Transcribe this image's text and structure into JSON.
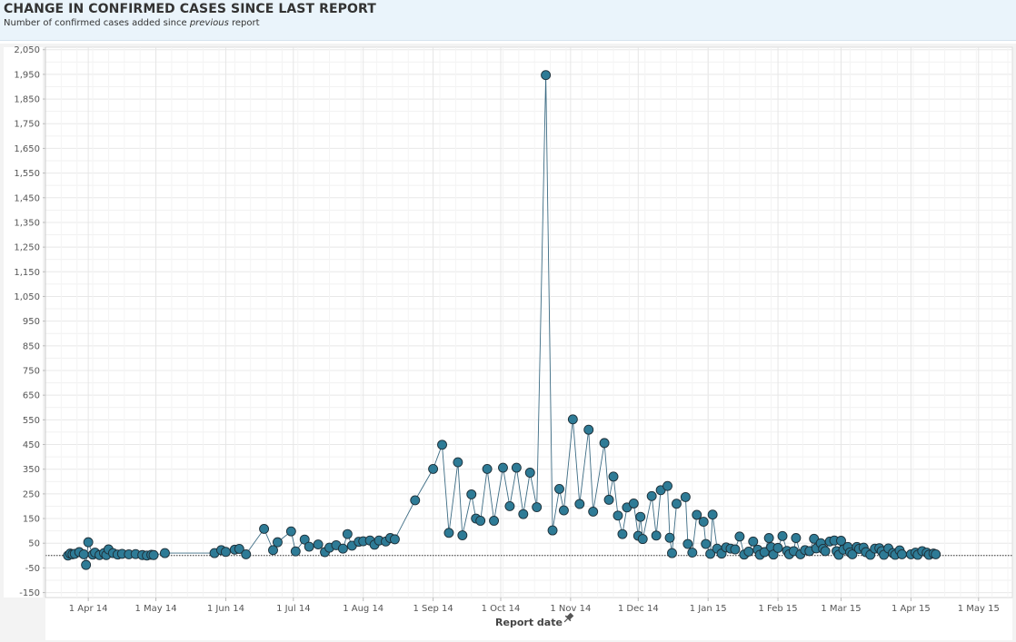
{
  "header": {
    "title": "CHANGE IN CONFIRMED CASES SINCE LAST REPORT",
    "subtitle_pre": "Number of confirmed cases added since ",
    "subtitle_em": "previous",
    "subtitle_post": " report"
  },
  "chart_data": {
    "type": "line",
    "title": "CHANGE IN CONFIRMED CASES SINCE LAST REPORT",
    "subtitle": "Number of confirmed cases added since previous report",
    "xlabel": "Report date",
    "ylabel": "",
    "ylim": [
      -170,
      2060
    ],
    "xlim": [
      "2014-03-13",
      "2015-05-16"
    ],
    "grid": true,
    "marker": "circle",
    "colors": {
      "series": "#2e7b96",
      "marker_edge": "#1d2f38",
      "line": "#3d6c84",
      "zero_line": "#333333"
    },
    "yticks": [
      -150,
      -50,
      50,
      150,
      250,
      350,
      450,
      550,
      650,
      750,
      850,
      950,
      1050,
      1150,
      1250,
      1350,
      1450,
      1550,
      1650,
      1750,
      1850,
      1950,
      2050
    ],
    "ytick_labels": [
      "-150",
      "-50",
      "50",
      "150",
      "250",
      "350",
      "450",
      "550",
      "650",
      "750",
      "850",
      "950",
      "1,050",
      "1,150",
      "1,250",
      "1,350",
      "1,450",
      "1,550",
      "1,650",
      "1,750",
      "1,850",
      "1,950",
      "2,050"
    ],
    "xticks": [
      {
        "date": "2014-04-01",
        "label": "1 Apr 14"
      },
      {
        "date": "2014-05-01",
        "label": "1 May 14"
      },
      {
        "date": "2014-06-01",
        "label": "1 Jun 14"
      },
      {
        "date": "2014-07-01",
        "label": "1 Jul 14"
      },
      {
        "date": "2014-08-01",
        "label": "1 Aug 14"
      },
      {
        "date": "2014-09-01",
        "label": "1 Sep 14"
      },
      {
        "date": "2014-10-01",
        "label": "1 Oct 14"
      },
      {
        "date": "2014-11-01",
        "label": "1 Nov 14"
      },
      {
        "date": "2014-12-01",
        "label": "1 Dec 14"
      },
      {
        "date": "2015-01-01",
        "label": "1 Jan 15"
      },
      {
        "date": "2015-02-01",
        "label": "1 Feb 15"
      },
      {
        "date": "2015-03-01",
        "label": "1 Mar 15"
      },
      {
        "date": "2015-04-01",
        "label": "1 Apr 15"
      },
      {
        "date": "2015-05-01",
        "label": "1 May 15"
      }
    ],
    "series": [
      {
        "points": [
          [
            "2014-03-23",
            0
          ],
          [
            "2014-03-24",
            8
          ],
          [
            "2014-03-25",
            5
          ],
          [
            "2014-03-26",
            7
          ],
          [
            "2014-03-28",
            14
          ],
          [
            "2014-03-30",
            5
          ],
          [
            "2014-03-31",
            -38
          ],
          [
            "2014-04-01",
            54
          ],
          [
            "2014-04-03",
            4
          ],
          [
            "2014-04-04",
            12
          ],
          [
            "2014-04-06",
            2
          ],
          [
            "2014-04-08",
            10
          ],
          [
            "2014-04-09",
            2
          ],
          [
            "2014-04-10",
            25
          ],
          [
            "2014-04-12",
            10
          ],
          [
            "2014-04-14",
            4
          ],
          [
            "2014-04-16",
            7
          ],
          [
            "2014-04-19",
            5
          ],
          [
            "2014-04-22",
            6
          ],
          [
            "2014-04-25",
            2
          ],
          [
            "2014-04-27",
            0
          ],
          [
            "2014-04-29",
            3
          ],
          [
            "2014-04-30",
            2
          ],
          [
            "2014-05-05",
            10
          ],
          [
            "2014-05-27",
            10
          ],
          [
            "2014-05-30",
            22
          ],
          [
            "2014-06-01",
            15
          ],
          [
            "2014-06-05",
            24
          ],
          [
            "2014-06-07",
            27
          ],
          [
            "2014-06-10",
            5
          ],
          [
            "2014-06-18",
            108
          ],
          [
            "2014-06-22",
            22
          ],
          [
            "2014-06-24",
            54
          ],
          [
            "2014-06-30",
            98
          ],
          [
            "2014-07-02",
            17
          ],
          [
            "2014-07-06",
            65
          ],
          [
            "2014-07-08",
            36
          ],
          [
            "2014-07-12",
            45
          ],
          [
            "2014-07-15",
            14
          ],
          [
            "2014-07-17",
            32
          ],
          [
            "2014-07-20",
            42
          ],
          [
            "2014-07-23",
            28
          ],
          [
            "2014-07-25",
            87
          ],
          [
            "2014-07-27",
            40
          ],
          [
            "2014-07-30",
            56
          ],
          [
            "2014-08-01",
            58
          ],
          [
            "2014-08-04",
            61
          ],
          [
            "2014-08-06",
            44
          ],
          [
            "2014-08-08",
            61
          ],
          [
            "2014-08-11",
            57
          ],
          [
            "2014-08-13",
            71
          ],
          [
            "2014-08-15",
            66
          ],
          [
            "2014-08-24",
            224
          ],
          [
            "2014-09-01",
            351
          ],
          [
            "2014-09-05",
            449
          ],
          [
            "2014-09-08",
            92
          ],
          [
            "2014-09-12",
            378
          ],
          [
            "2014-09-14",
            82
          ],
          [
            "2014-09-18",
            248
          ],
          [
            "2014-09-20",
            150
          ],
          [
            "2014-09-22",
            141
          ],
          [
            "2014-09-25",
            351
          ],
          [
            "2014-09-28",
            141
          ],
          [
            "2014-10-02",
            356
          ],
          [
            "2014-10-05",
            200
          ],
          [
            "2014-10-08",
            356
          ],
          [
            "2014-10-11",
            168
          ],
          [
            "2014-10-14",
            336
          ],
          [
            "2014-10-17",
            196
          ],
          [
            "2014-10-21",
            1947
          ],
          [
            "2014-10-24",
            102
          ],
          [
            "2014-10-27",
            270
          ],
          [
            "2014-10-29",
            183
          ],
          [
            "2014-11-02",
            552
          ],
          [
            "2014-11-05",
            209
          ],
          [
            "2014-11-09",
            510
          ],
          [
            "2014-11-11",
            178
          ],
          [
            "2014-11-16",
            456
          ],
          [
            "2014-11-18",
            226
          ],
          [
            "2014-11-20",
            320
          ],
          [
            "2014-11-22",
            162
          ],
          [
            "2014-11-24",
            87
          ],
          [
            "2014-11-26",
            195
          ],
          [
            "2014-11-29",
            211
          ],
          [
            "2014-12-01",
            80
          ],
          [
            "2014-12-02",
            157
          ],
          [
            "2014-12-03",
            67
          ],
          [
            "2014-12-07",
            241
          ],
          [
            "2014-12-09",
            81
          ],
          [
            "2014-12-11",
            265
          ],
          [
            "2014-12-14",
            282
          ],
          [
            "2014-12-15",
            72
          ],
          [
            "2014-12-16",
            10
          ],
          [
            "2014-12-18",
            210
          ],
          [
            "2014-12-22",
            237
          ],
          [
            "2014-12-23",
            47
          ],
          [
            "2014-12-25",
            12
          ],
          [
            "2014-12-27",
            165
          ],
          [
            "2014-12-30",
            137
          ],
          [
            "2014-12-31",
            47
          ],
          [
            "2015-01-02",
            7
          ],
          [
            "2015-01-03",
            166
          ],
          [
            "2015-01-05",
            28
          ],
          [
            "2015-01-07",
            8
          ],
          [
            "2015-01-09",
            33
          ],
          [
            "2015-01-11",
            28
          ],
          [
            "2015-01-13",
            25
          ],
          [
            "2015-01-15",
            77
          ],
          [
            "2015-01-17",
            4
          ],
          [
            "2015-01-19",
            16
          ],
          [
            "2015-01-21",
            57
          ],
          [
            "2015-01-23",
            24
          ],
          [
            "2015-01-24",
            3
          ],
          [
            "2015-01-26",
            14
          ],
          [
            "2015-01-28",
            71
          ],
          [
            "2015-01-29",
            34
          ],
          [
            "2015-01-30",
            4
          ],
          [
            "2015-02-01",
            31
          ],
          [
            "2015-02-03",
            79
          ],
          [
            "2015-02-05",
            19
          ],
          [
            "2015-02-06",
            5
          ],
          [
            "2015-02-08",
            18
          ],
          [
            "2015-02-09",
            71
          ],
          [
            "2015-02-11",
            5
          ],
          [
            "2015-02-13",
            22
          ],
          [
            "2015-02-15",
            18
          ],
          [
            "2015-02-17",
            68
          ],
          [
            "2015-02-18",
            29
          ],
          [
            "2015-02-20",
            50
          ],
          [
            "2015-02-21",
            27
          ],
          [
            "2015-02-22",
            18
          ],
          [
            "2015-02-24",
            57
          ],
          [
            "2015-02-26",
            61
          ],
          [
            "2015-02-27",
            18
          ],
          [
            "2015-02-28",
            3
          ],
          [
            "2015-03-01",
            60
          ],
          [
            "2015-03-02",
            24
          ],
          [
            "2015-03-04",
            35
          ],
          [
            "2015-03-05",
            13
          ],
          [
            "2015-03-06",
            5
          ],
          [
            "2015-03-08",
            35
          ],
          [
            "2015-03-09",
            27
          ],
          [
            "2015-03-11",
            32
          ],
          [
            "2015-03-12",
            14
          ],
          [
            "2015-03-14",
            3
          ],
          [
            "2015-03-16",
            28
          ],
          [
            "2015-03-18",
            30
          ],
          [
            "2015-03-19",
            18
          ],
          [
            "2015-03-20",
            3
          ],
          [
            "2015-03-22",
            29
          ],
          [
            "2015-03-24",
            10
          ],
          [
            "2015-03-25",
            3
          ],
          [
            "2015-03-27",
            21
          ],
          [
            "2015-03-28",
            5
          ],
          [
            "2015-04-01",
            5
          ],
          [
            "2015-04-03",
            12
          ],
          [
            "2015-04-04",
            3
          ],
          [
            "2015-04-06",
            18
          ],
          [
            "2015-04-08",
            12
          ],
          [
            "2015-04-09",
            3
          ],
          [
            "2015-04-11",
            8
          ],
          [
            "2015-04-12",
            5
          ]
        ]
      }
    ]
  }
}
